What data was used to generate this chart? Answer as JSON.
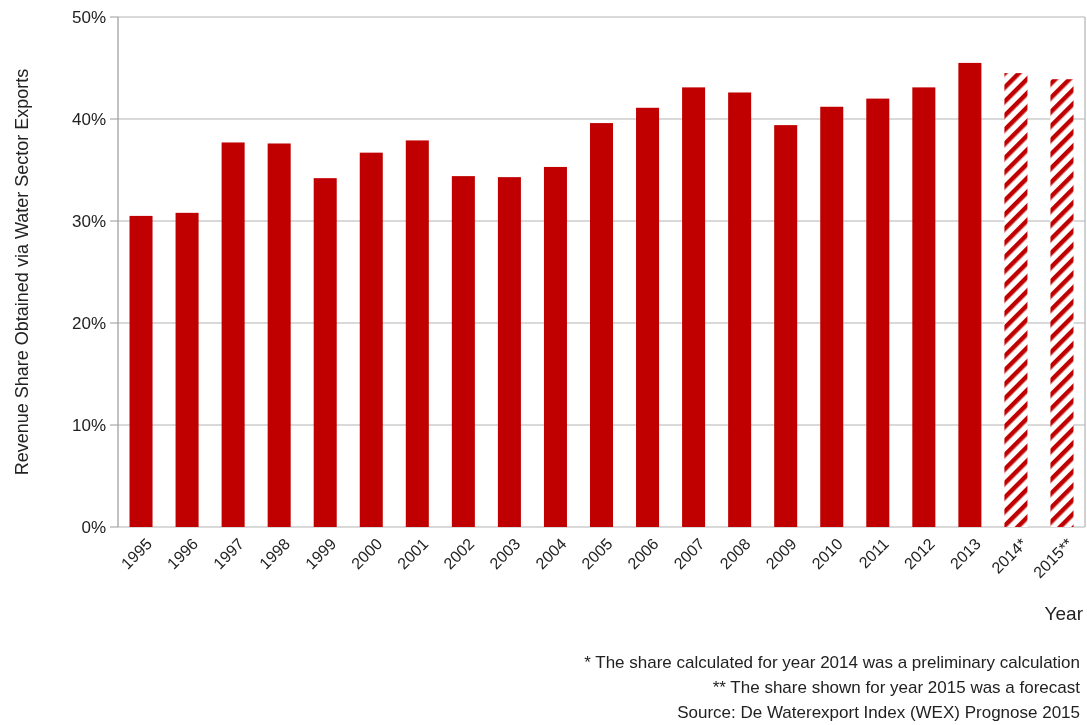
{
  "chart_data": {
    "type": "bar",
    "xlabel": "Year",
    "ylabel": "Revenue Share Obtained via Water Sector Exports",
    "categories": [
      "1995",
      "1996",
      "1997",
      "1998",
      "1999",
      "2000",
      "2001",
      "2002",
      "2003",
      "2004",
      "2005",
      "2006",
      "2007",
      "2008",
      "2009",
      "2010",
      "2011",
      "2012",
      "2013",
      "2014*",
      "2015**"
    ],
    "series": [
      {
        "color": "#c00000",
        "values": [
          30.5,
          30.8,
          37.7,
          37.6,
          34.2,
          36.7,
          37.9,
          34.4,
          34.3,
          35.3,
          39.6,
          41.1,
          43.1,
          42.6,
          39.4,
          41.2,
          42.0,
          43.1,
          45.5,
          null,
          null
        ]
      },
      {
        "color": "#c00000",
        "values": [
          null,
          null,
          null,
          null,
          null,
          null,
          null,
          null,
          null,
          null,
          null,
          null,
          null,
          null,
          null,
          null,
          null,
          null,
          null,
          44.5,
          43.9
        ]
      }
    ],
    "ylim": [
      0,
      50
    ],
    "yticks": [
      {
        "value": 0,
        "label": "0%"
      },
      {
        "value": 10,
        "label": "10%"
      },
      {
        "value": 20,
        "label": "20%"
      },
      {
        "value": 30,
        "label": "30%"
      },
      {
        "value": 40,
        "label": "40%"
      },
      {
        "value": 50,
        "label": "50%"
      }
    ],
    "grid": "y",
    "annotations": [
      "* The share calculated for year 2014 was a preliminary calculation",
      "** The share shown for year 2015 was a forecast",
      "Source: De Waterexport Index (WEX) Prognose 2015"
    ]
  }
}
